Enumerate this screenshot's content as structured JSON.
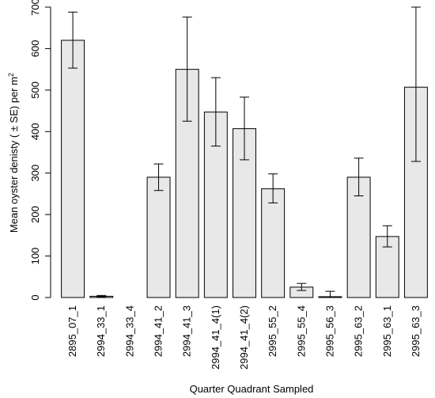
{
  "chart_data": {
    "type": "bar",
    "title": "",
    "xlabel": "Quarter Quadrant Sampled",
    "ylabel": "Mean oyster denisty ( ± SE) per m",
    "ylabel_superscript": "2",
    "ylim": [
      0,
      700
    ],
    "yticks": [
      0,
      100,
      200,
      300,
      400,
      500,
      600,
      700
    ],
    "grid": false,
    "legend": "none",
    "bar_color": "#e8e8e8",
    "categories": [
      "2895_07_1",
      "2994_33_1",
      "2994_33_4",
      "2994_41_2",
      "2994_41_3",
      "2994_41_4(1)",
      "2994_41_4(2)",
      "2995_55_2",
      "2995_55_4",
      "2995_56_3",
      "2995_63_2",
      "2995_63_1",
      "2995_63_3"
    ],
    "values": [
      620,
      3,
      0,
      290,
      550,
      447,
      407,
      262,
      25,
      2,
      290,
      147,
      507
    ],
    "error_low": [
      553,
      1,
      0,
      258,
      425,
      365,
      332,
      228,
      17,
      0,
      245,
      122,
      328
    ],
    "error_high": [
      688,
      5,
      0,
      322,
      676,
      530,
      483,
      298,
      34,
      15,
      336,
      173,
      700
    ]
  }
}
